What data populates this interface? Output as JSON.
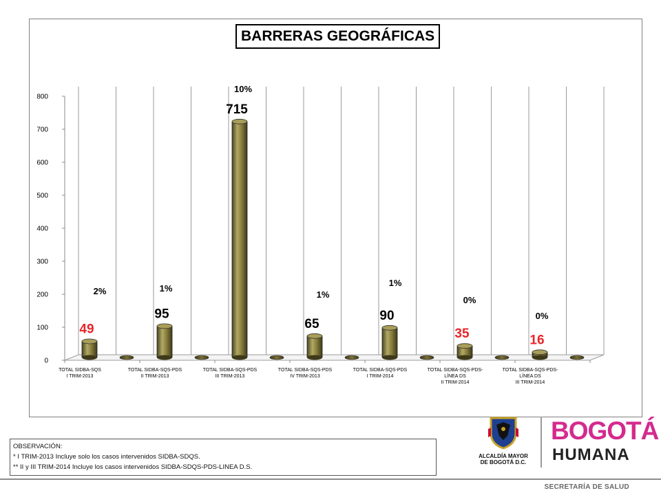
{
  "chart_data": {
    "type": "bar",
    "title": "BARRERAS GEOGRÁFICAS",
    "ylim": [
      0,
      800
    ],
    "yticks": [
      0,
      100,
      200,
      300,
      400,
      500,
      600,
      700,
      800
    ],
    "grid": "vertical",
    "categories": [
      [
        "TOTAL SIDBA-SQS",
        "I TRIM-2013"
      ],
      [
        "TOTAL SIDBA-SQS-PDS",
        "II TRIM-2013"
      ],
      [
        "TOTAL SIDBA-SQS-PDS",
        "III TRIM-2013"
      ],
      [
        "TOTAL SIDBA-SQS-PDS",
        "IV TRIM-2013"
      ],
      [
        "TOTAL SIDBA-SQS-PDS",
        "I TRIM-2014"
      ],
      [
        "TOTAL SIDBA-SQS-PDS-",
        "LÍNEA DS",
        "II TRIM-2014"
      ],
      [
        "TOTAL SIDBA-SQS-PDS-",
        "LÍNEA DS",
        "III TRIM-2014"
      ]
    ],
    "values": [
      49,
      95,
      715,
      65,
      90,
      35,
      16
    ],
    "value_labels": [
      "49",
      "95",
      "715",
      "65",
      "90",
      "35",
      "16"
    ],
    "percent_labels": [
      "2%",
      "1%",
      "10%",
      "1%",
      "1%",
      "0%",
      "0%"
    ],
    "label_colors": [
      "#e8262a",
      "#000000",
      "#000000",
      "#000000",
      "#000000",
      "#e8262a",
      "#e8262a"
    ],
    "bar_color": "#8c8240"
  },
  "observation": {
    "heading": "OBSERVACIÓN:",
    "line1": "* I TRIM-2013 Incluye solo los casos intervenidos SIDBA-SDQS.",
    "line2": "** II y III TRIM-2014 Incluye los casos intervenidos SIDBA-SDQS-PDS-LINEA D.S."
  },
  "logos": {
    "alcaldia_line1": "ALCALDÍA MAYOR",
    "alcaldia_line2": "DE BOGOTÁ D.C.",
    "bogota": "BOGOTÁ",
    "humana": "HUMANA"
  },
  "footer": {
    "text": "SECRETARÍA DE SALUD"
  },
  "colors": {
    "pink": "#d42a8e",
    "red_label": "#e8262a",
    "bar": "#8c8240"
  }
}
